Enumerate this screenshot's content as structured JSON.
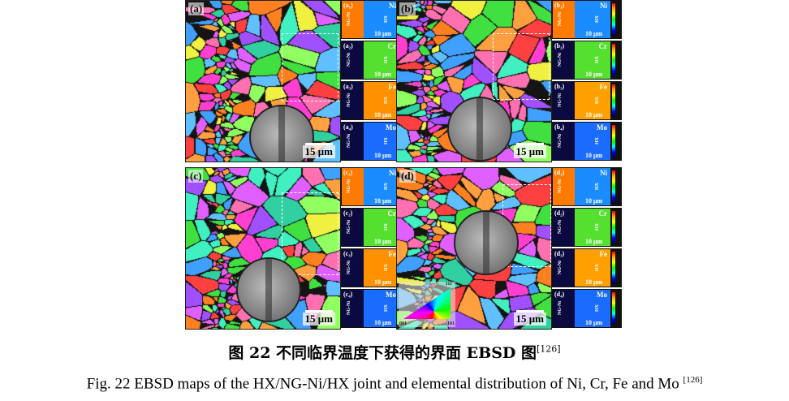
{
  "panels": [
    {
      "label": "(a)",
      "scale": "15 μm",
      "elements": [
        {
          "tag": "(a₁)",
          "sym": "Ni"
        },
        {
          "tag": "(a₂)",
          "sym": "Cr"
        },
        {
          "tag": "(a₃)",
          "sym": "Fe"
        },
        {
          "tag": "(a₄)",
          "sym": "Mo"
        }
      ]
    },
    {
      "label": "(b)",
      "scale": "15 μm",
      "elements": [
        {
          "tag": "(b₁)",
          "sym": "Ni"
        },
        {
          "tag": "(b₂)",
          "sym": "Cr"
        },
        {
          "tag": "(b₃)",
          "sym": "Fe"
        },
        {
          "tag": "(b₄)",
          "sym": "Mo"
        }
      ]
    },
    {
      "label": "(c)",
      "scale": "15 μm",
      "elements": [
        {
          "tag": "(c₁)",
          "sym": "Ni"
        },
        {
          "tag": "(c₂)",
          "sym": "Cr"
        },
        {
          "tag": "(c₃)",
          "sym": "Fe"
        },
        {
          "tag": "(c₄)",
          "sym": "Mo"
        }
      ]
    },
    {
      "label": "(d)",
      "scale": "15 μm",
      "elements": [
        {
          "tag": "(d₁)",
          "sym": "Ni"
        },
        {
          "tag": "(d₂)",
          "sym": "Cr"
        },
        {
          "tag": "(d₃)",
          "sym": "Fe"
        },
        {
          "tag": "(d₄)",
          "sym": "Mo"
        }
      ]
    }
  ],
  "element_map": {
    "left_label": "NG-Ni",
    "right_label": "HX",
    "scale": "10 μm"
  },
  "ipf_legend": {
    "corners": [
      "001",
      "101",
      "111"
    ]
  },
  "caption": {
    "zh": "图 22  不同临界温度下获得的界面 EBSD 图",
    "zh_ref": "[126]",
    "en": "Fig. 22 EBSD maps of the HX/NG-Ni/HX joint and elemental distribution of Ni, Cr, Fe and Mo ",
    "en_ref": "[126]"
  },
  "colors": {
    "ni_ng": "#ff7a00",
    "ni_hx": "#1a8cff",
    "cr_hx": "#55e030",
    "fe_hx": "#ffa000",
    "mo_hx": "#1a6cff",
    "ng_dark": "#0a0a40"
  }
}
